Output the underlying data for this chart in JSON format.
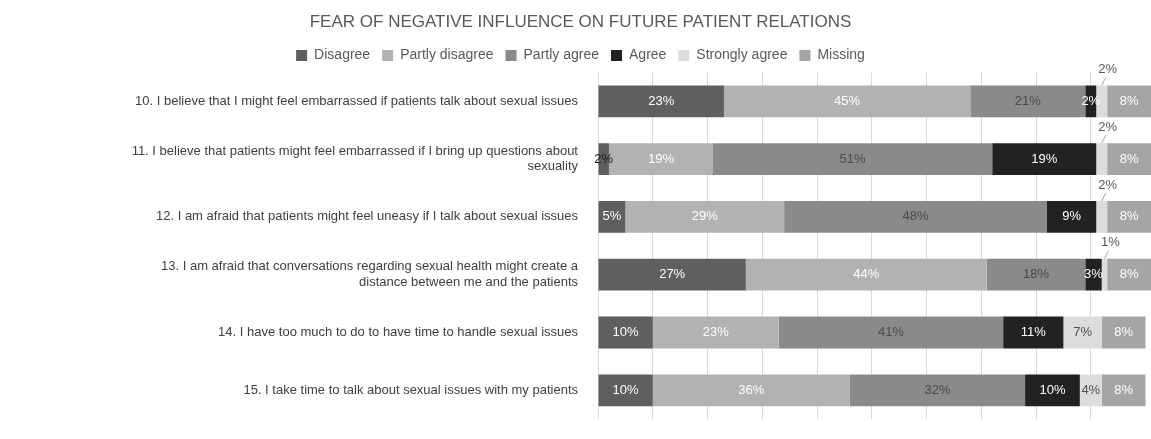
{
  "chart_data": {
    "type": "bar",
    "orientation": "horizontal",
    "stacked": true,
    "title": "FEAR OF NEGATIVE INFLUENCE ON FUTURE PATIENT RELATIONS",
    "categories": [
      "10. I believe that I might feel embarrassed if patients talk about sexual issues",
      "11. I believe that patients might feel embarrassed if I bring up questions about sexuality",
      "12. I am afraid that patients might feel uneasy if I talk about sexual issues",
      "13. I am afraid that conversations regarding sexual health might create a distance between me and the patients",
      "14. I have too much to do to have time to handle sexual issues",
      "15. I take time to talk about sexual issues with my patients"
    ],
    "series": [
      {
        "name": "Disagree",
        "color": "#5f5f5f",
        "values": [
          23,
          2,
          5,
          27,
          10,
          10
        ],
        "value_labels": [
          "23%",
          "2%",
          "5%",
          "27%",
          "10%",
          "10%"
        ]
      },
      {
        "name": "Partly disagree",
        "color": "#b2b2b2",
        "values": [
          45,
          19,
          29,
          44,
          23,
          36
        ],
        "value_labels": [
          "45%",
          "19%",
          "29%",
          "44%",
          "23%",
          "36%"
        ]
      },
      {
        "name": "Partly agree",
        "color": "#8a8a8a",
        "values": [
          21,
          51,
          48,
          18,
          41,
          32
        ],
        "value_labels": [
          "21%",
          "51%",
          "48%",
          "18%",
          "41%",
          "32%"
        ]
      },
      {
        "name": "Agree",
        "color": "#222222",
        "values": [
          2,
          19,
          9,
          3,
          11,
          10
        ],
        "value_labels": [
          "2%",
          "19%",
          "9%",
          "3%",
          "11%",
          "10%"
        ]
      },
      {
        "name": "Strongly agree",
        "color": "#dcdcdc",
        "values": [
          2,
          2,
          2,
          1,
          7,
          4
        ],
        "value_labels": [
          "2%",
          "2%",
          "2%",
          "1%",
          "7%",
          "4%"
        ]
      },
      {
        "name": "Missing",
        "color": "#a5a5a5",
        "values": [
          8,
          8,
          8,
          8,
          8,
          8
        ],
        "value_labels": [
          "8%",
          "8%",
          "8%",
          "8%",
          "8%",
          "8%"
        ]
      }
    ],
    "tick_labels": "y",
    "grid": "x",
    "legend": "top"
  }
}
